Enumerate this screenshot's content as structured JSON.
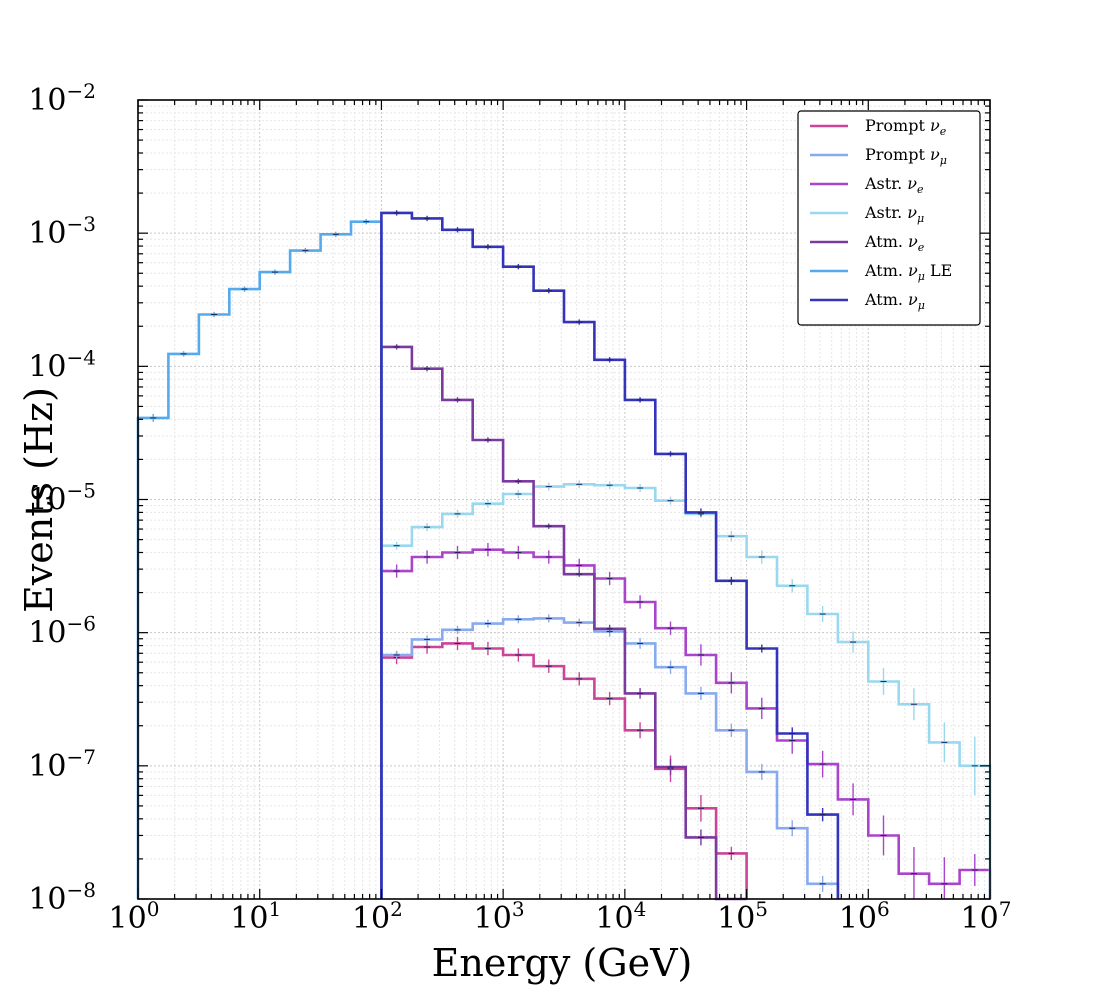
{
  "chart_data": {
    "type": "line",
    "subtype": "step-histogram",
    "title": "",
    "xlabel": "Energy (GeV)",
    "ylabel": "Events (Hz)",
    "xscale": "log",
    "yscale": "log",
    "xlim": [
      1,
      10000000
    ],
    "ylim": [
      1e-08,
      0.01
    ],
    "grid": true,
    "legend_position": "top-right",
    "x_ticks": [
      {
        "base": "10",
        "exp": "0"
      },
      {
        "base": "10",
        "exp": "1"
      },
      {
        "base": "10",
        "exp": "2"
      },
      {
        "base": "10",
        "exp": "3"
      },
      {
        "base": "10",
        "exp": "4"
      },
      {
        "base": "10",
        "exp": "5"
      },
      {
        "base": "10",
        "exp": "6"
      },
      {
        "base": "10",
        "exp": "7"
      }
    ],
    "y_ticks": [
      {
        "base": "10",
        "exp": "−8"
      },
      {
        "base": "10",
        "exp": "−7"
      },
      {
        "base": "10",
        "exp": "−6"
      },
      {
        "base": "10",
        "exp": "−5"
      },
      {
        "base": "10",
        "exp": "−4"
      },
      {
        "base": "10",
        "exp": "−3"
      },
      {
        "base": "10",
        "exp": "−2"
      }
    ],
    "series": [
      {
        "name": "Prompt",
        "nu_sub": "e",
        "suffix": "",
        "color": "#cc4499",
        "start": 100,
        "stop": 100000,
        "values": [
          6.5e-07,
          7.8e-07,
          8.3e-07,
          7.6e-07,
          6.8e-07,
          5.6e-07,
          4.5e-07,
          3.2e-07,
          1.85e-07,
          9.5e-08,
          4.8e-08,
          2.2e-08
        ],
        "errors": [
          0.05,
          0.05,
          0.05,
          0.05,
          0.05,
          0.05,
          0.05,
          0.05,
          0.06,
          0.1,
          0.1,
          0.05
        ]
      },
      {
        "name": "Prompt",
        "nu_sub": "μ",
        "suffix": "",
        "color": "#88aaee",
        "start": 100,
        "stop": 562341,
        "values": [
          6.8e-07,
          8.9e-07,
          1.05e-06,
          1.17e-06,
          1.26e-06,
          1.28e-06,
          1.19e-06,
          1.02e-06,
          8.3e-07,
          5.5e-07,
          3.5e-07,
          1.85e-07,
          9e-08,
          3.4e-08,
          1.3e-08
        ],
        "errors": [
          0.03,
          0.03,
          0.03,
          0.03,
          0.03,
          0.03,
          0.03,
          0.04,
          0.04,
          0.05,
          0.05,
          0.05,
          0.06,
          0.06,
          0.06
        ]
      },
      {
        "name": "Astr.",
        "nu_sub": "e",
        "suffix": "",
        "color": "#aa44cc",
        "start": 100,
        "stop": 10000000,
        "values": [
          2.9e-06,
          3.7e-06,
          4e-06,
          4.2e-06,
          4e-06,
          3.7e-06,
          3.2e-06,
          2.55e-06,
          1.7e-06,
          1.08e-06,
          6.8e-07,
          4.2e-07,
          2.7e-07,
          1.55e-07,
          1.03e-07,
          5.6e-08,
          3e-08,
          1.55e-08,
          1.3e-08,
          1.65e-08
        ],
        "errors": [
          0.05,
          0.05,
          0.05,
          0.05,
          0.05,
          0.05,
          0.05,
          0.05,
          0.05,
          0.05,
          0.08,
          0.08,
          0.08,
          0.1,
          0.1,
          0.12,
          0.15,
          0.2,
          0.2,
          0.12
        ]
      },
      {
        "name": "Astr.",
        "nu_sub": "μ",
        "suffix": "",
        "color": "#99d8ee",
        "start": 100,
        "stop": 10000000,
        "values": [
          4.5e-06,
          6.2e-06,
          7.8e-06,
          9.3e-06,
          1.1e-05,
          1.25e-05,
          1.3e-05,
          1.28e-05,
          1.22e-05,
          9.8e-06,
          7.8e-06,
          5.3e-06,
          3.7e-06,
          2.25e-06,
          1.38e-06,
          8.5e-07,
          4.3e-07,
          2.9e-07,
          1.5e-07,
          1e-07
        ],
        "errors": [
          0.03,
          0.03,
          0.03,
          0.03,
          0.03,
          0.03,
          0.03,
          0.03,
          0.03,
          0.03,
          0.03,
          0.04,
          0.05,
          0.05,
          0.06,
          0.08,
          0.1,
          0.12,
          0.15,
          0.22
        ]
      },
      {
        "name": "Atm.",
        "nu_sub": "e",
        "suffix": "",
        "color": "#7a3aa0",
        "start": 100,
        "stop": 100000,
        "values": [
          0.00014,
          9.6e-05,
          5.6e-05,
          2.8e-05,
          1.37e-05,
          6.3e-06,
          2.75e-06,
          1.07e-06,
          3.5e-07,
          9.8e-08,
          2.9e-08,
          1e-09
        ],
        "errors": [
          0.02,
          0.02,
          0.02,
          0.02,
          0.02,
          0.02,
          0.02,
          0.03,
          0.04,
          0.06,
          0.06,
          0
        ]
      },
      {
        "name": "Atm.",
        "nu_sub": "μ",
        "suffix": "LE",
        "color": "#55aaee",
        "start": 1,
        "stop": 100,
        "values": [
          4.1e-05,
          0.000124,
          0.000245,
          0.00038,
          0.00051,
          0.00074,
          0.00098,
          0.00122
        ],
        "errors": [
          0.03,
          0.02,
          0.02,
          0.02,
          0.02,
          0.02,
          0.02,
          0.02
        ]
      },
      {
        "name": "Atm.",
        "nu_sub": "μ",
        "suffix": "",
        "color": "#3333bb",
        "start": 100,
        "stop": 562341,
        "values": [
          0.00142,
          0.00129,
          0.00106,
          0.00079,
          0.00056,
          0.00037,
          0.000215,
          0.000112,
          5.6e-05,
          2.2e-05,
          8e-06,
          2.45e-06,
          7.6e-07,
          1.75e-07,
          4.3e-08
        ],
        "errors": [
          0.02,
          0.02,
          0.02,
          0.02,
          0.02,
          0.02,
          0.02,
          0.02,
          0.02,
          0.02,
          0.03,
          0.03,
          0.03,
          0.04,
          0.05
        ]
      }
    ]
  }
}
